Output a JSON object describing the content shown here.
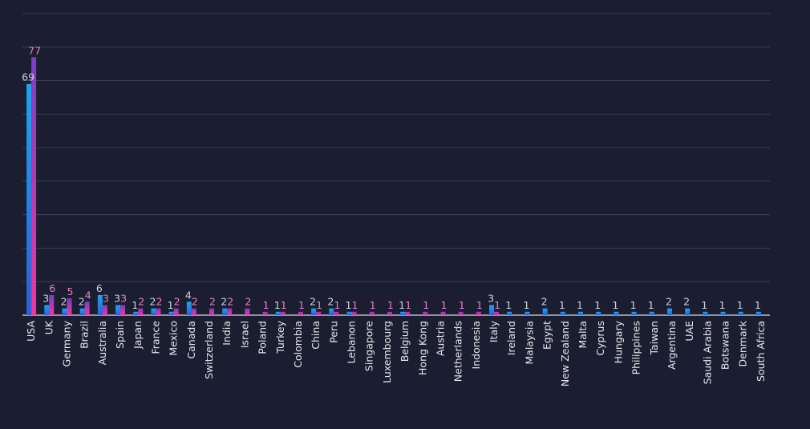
{
  "chart_data": {
    "type": "bar",
    "title": "",
    "xlabel": "",
    "ylabel": "",
    "ylim": [
      0,
      90
    ],
    "grid": true,
    "legend": "none",
    "categories": [
      "USA",
      "UK",
      "Germany",
      "Brazil",
      "Australia",
      "Spain",
      "Japan",
      "France",
      "Mexico",
      "Canada",
      "Switzerland",
      "India",
      "Israel",
      "Poland",
      "Turkey",
      "Colombia",
      "China",
      "Peru",
      "Lebanon",
      "Singapore",
      "Luxembourg",
      "Belgium",
      "Hong Kong",
      "Austria",
      "Netherlands",
      "Indonesia",
      "Italy",
      "Ireland",
      "Malaysia",
      "Egypt",
      "New Zealand",
      "Malta",
      "Cyprus",
      "Hungary",
      "Philippines",
      "Taiwan",
      "Argentina",
      "UAE",
      "Saudi Arabia",
      "Botswana",
      "Denmark",
      "South Africa"
    ],
    "series": [
      {
        "colors": [
          "#1aa6f0",
          "#2e5fd8"
        ],
        "values": [
          69,
          3,
          2,
          2,
          6,
          3,
          1,
          2,
          1,
          4,
          null,
          2,
          null,
          null,
          1,
          null,
          2,
          2,
          1,
          null,
          null,
          1,
          null,
          null,
          null,
          null,
          3,
          1,
          1,
          2,
          1,
          1,
          1,
          1,
          1,
          1,
          2,
          2,
          1,
          1,
          1,
          1
        ]
      },
      {
        "colors": [
          "#7a3fc4",
          "#f0359f"
        ],
        "values": [
          77,
          6,
          5,
          4,
          3,
          3,
          2,
          2,
          2,
          2,
          2,
          2,
          2,
          1,
          1,
          1,
          1,
          1,
          1,
          1,
          1,
          1,
          1,
          1,
          1,
          1,
          1,
          null,
          null,
          null,
          null,
          null,
          null,
          null,
          null,
          null,
          null,
          null,
          null,
          null,
          null,
          null
        ]
      }
    ]
  }
}
